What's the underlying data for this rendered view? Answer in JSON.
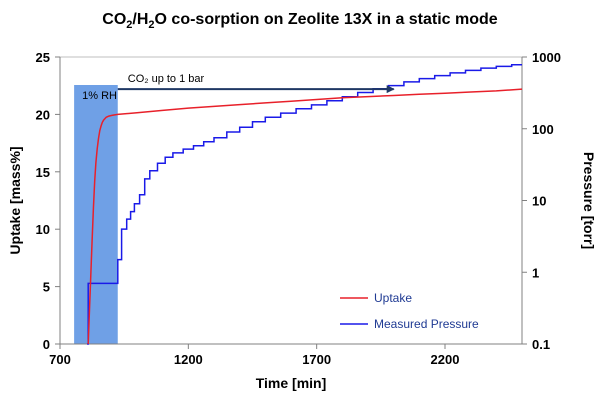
{
  "chart_data": {
    "type": "line",
    "title": {
      "pre": "CO",
      "sub1": "2",
      "mid": "/H",
      "sub2": "2",
      "post": "O co-sorption on Zeolite 13X in a static mode"
    },
    "xlabel": "Time [min]",
    "ylabel_left": "Uptake [mass%]",
    "ylabel_right": "Pressure [torr]",
    "xlim": [
      700,
      2500
    ],
    "ylim_left": [
      0,
      25
    ],
    "ylim_right_log": [
      0.1,
      1000
    ],
    "x_ticks": [
      700,
      1200,
      1700,
      2200
    ],
    "x_tick_labels": [
      "700",
      "1200",
      "1700",
      "2200"
    ],
    "y_left_ticks": [
      0,
      5,
      10,
      15,
      20,
      25
    ],
    "y_left_tick_labels": [
      "0",
      "5",
      "10",
      "15",
      "20",
      "25"
    ],
    "y_right_ticks": [
      0.1,
      1,
      10,
      100,
      1000
    ],
    "y_right_tick_labels": [
      "0.1",
      "1",
      "10",
      "100",
      "1000"
    ],
    "shaded_region": {
      "x_start": 755,
      "x_end": 925,
      "color": "#6fa0e6",
      "label": "1% RH"
    },
    "annotation_arrow": {
      "label": "CO₂ up to 1 bar",
      "x_start": 925,
      "x_end": 2000,
      "y": 22.2,
      "color": "#1f3864"
    },
    "series": [
      {
        "name": "Uptake",
        "axis": "left",
        "color": "#e8202a",
        "x": [
          810,
          815,
          820,
          825,
          830,
          835,
          840,
          845,
          850,
          855,
          860,
          865,
          870,
          880,
          890,
          900,
          910,
          925,
          1000,
          1100,
          1200,
          1300,
          1400,
          1500,
          1600,
          1700,
          1800,
          1900,
          2000,
          2100,
          2200,
          2300,
          2400,
          2500
        ],
        "values": [
          0,
          3.0,
          6.0,
          9.0,
          11.8,
          14.2,
          15.8,
          17.0,
          17.9,
          18.6,
          19.0,
          19.3,
          19.5,
          19.75,
          19.85,
          19.9,
          19.95,
          20.0,
          20.15,
          20.35,
          20.55,
          20.7,
          20.85,
          21.0,
          21.15,
          21.3,
          21.45,
          21.55,
          21.65,
          21.75,
          21.85,
          21.95,
          22.05,
          22.2
        ]
      },
      {
        "name": "Measured Pressure",
        "axis": "right",
        "color": "#1a1ae8",
        "x": [
          805,
          810,
          810,
          925,
          925,
          940,
          940,
          960,
          960,
          975,
          975,
          990,
          990,
          1010,
          1010,
          1030,
          1030,
          1050,
          1050,
          1080,
          1080,
          1110,
          1110,
          1140,
          1140,
          1180,
          1180,
          1220,
          1220,
          1260,
          1260,
          1300,
          1300,
          1350,
          1350,
          1400,
          1400,
          1450,
          1450,
          1500,
          1500,
          1560,
          1560,
          1620,
          1620,
          1680,
          1680,
          1740,
          1740,
          1800,
          1800,
          1860,
          1860,
          1920,
          1920,
          1980,
          1980,
          2040,
          2040,
          2100,
          2100,
          2160,
          2160,
          2220,
          2220,
          2280,
          2280,
          2340,
          2340,
          2400,
          2400,
          2460,
          2460,
          2500
        ],
        "values": [
          0.1,
          0.1,
          0.7,
          0.7,
          1.5,
          1.5,
          4.0,
          4.0,
          5.5,
          5.5,
          7.0,
          7.0,
          9.0,
          9.0,
          12,
          12,
          20,
          20,
          26,
          26,
          33,
          33,
          40,
          40,
          46,
          46,
          52,
          52,
          58,
          58,
          66,
          66,
          75,
          75,
          90,
          90,
          105,
          105,
          125,
          125,
          145,
          145,
          165,
          165,
          190,
          190,
          215,
          215,
          245,
          245,
          280,
          280,
          320,
          320,
          360,
          360,
          400,
          400,
          450,
          450,
          500,
          500,
          550,
          550,
          600,
          600,
          650,
          650,
          700,
          700,
          740,
          740,
          780,
          780
        ]
      }
    ],
    "legend": {
      "position": "bottom-right",
      "entries": [
        "Uptake",
        "Measured Pressure"
      ]
    }
  }
}
